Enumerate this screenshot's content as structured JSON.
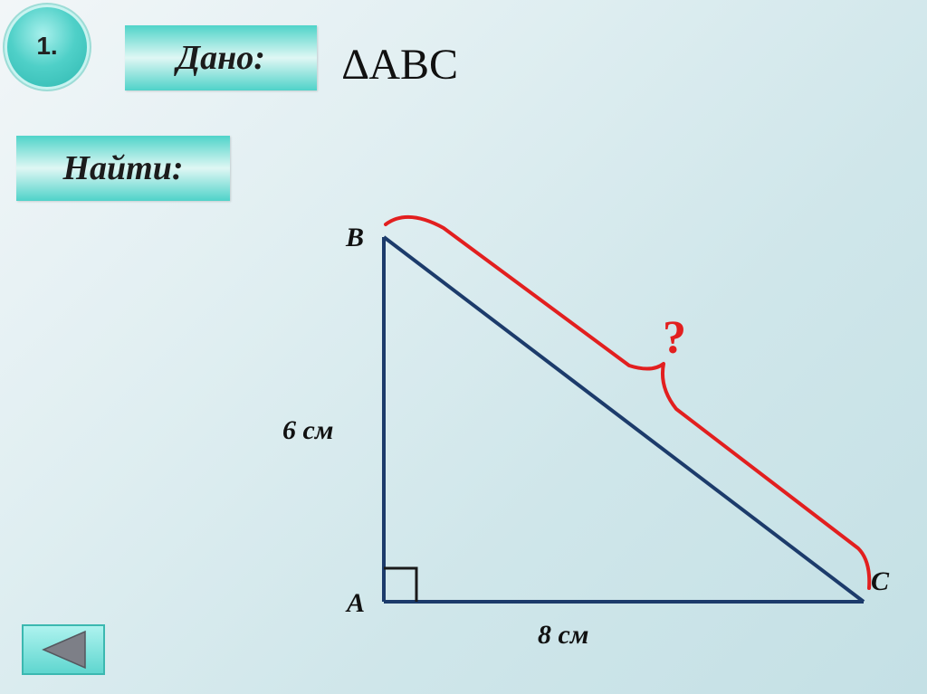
{
  "slide": {
    "number": "1."
  },
  "given": {
    "label": "Дано:",
    "value": "ABC",
    "icon": "triangle-symbol-icon"
  },
  "find": {
    "label": "Найти:"
  },
  "diagram": {
    "vertices": {
      "A": "A",
      "B": "B",
      "C": "C"
    },
    "side_ab": "6 см",
    "side_ac": "8 см",
    "unknown": "?",
    "colors": {
      "triangle": "#1c3b6b",
      "brace": "#e21f1f"
    }
  },
  "nav": {
    "icon": "back-arrow-icon"
  }
}
